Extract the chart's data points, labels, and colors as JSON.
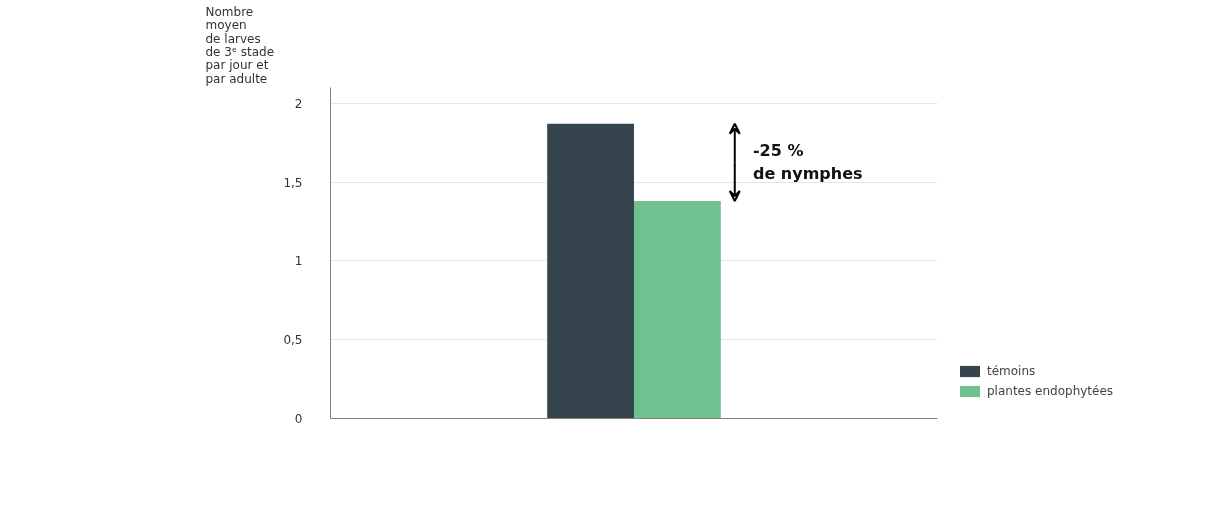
{
  "chart_data": {
    "type": "bar",
    "ylabel": "Nombre\nmoyen\nde larves\nde 3ᵉ stade\npar jour et\npar adulte",
    "categories": [
      null
    ],
    "series": [
      {
        "name": "témoins",
        "color": "#36444d",
        "values": [
          1.87
        ]
      },
      {
        "name": "plantes endophytées",
        "color": "#6fc28f",
        "values": [
          1.38
        ]
      }
    ],
    "ylim": [
      0,
      2.1
    ],
    "yticks": [
      0,
      {
        "value": 0.5,
        "label": "0,5"
      },
      1,
      {
        "value": 1.5,
        "label": "1,5"
      },
      2
    ],
    "tick_labels": "y",
    "grid": "y",
    "legend": "bottom right",
    "annotations": [
      "-25 %\nde nymphes"
    ]
  }
}
